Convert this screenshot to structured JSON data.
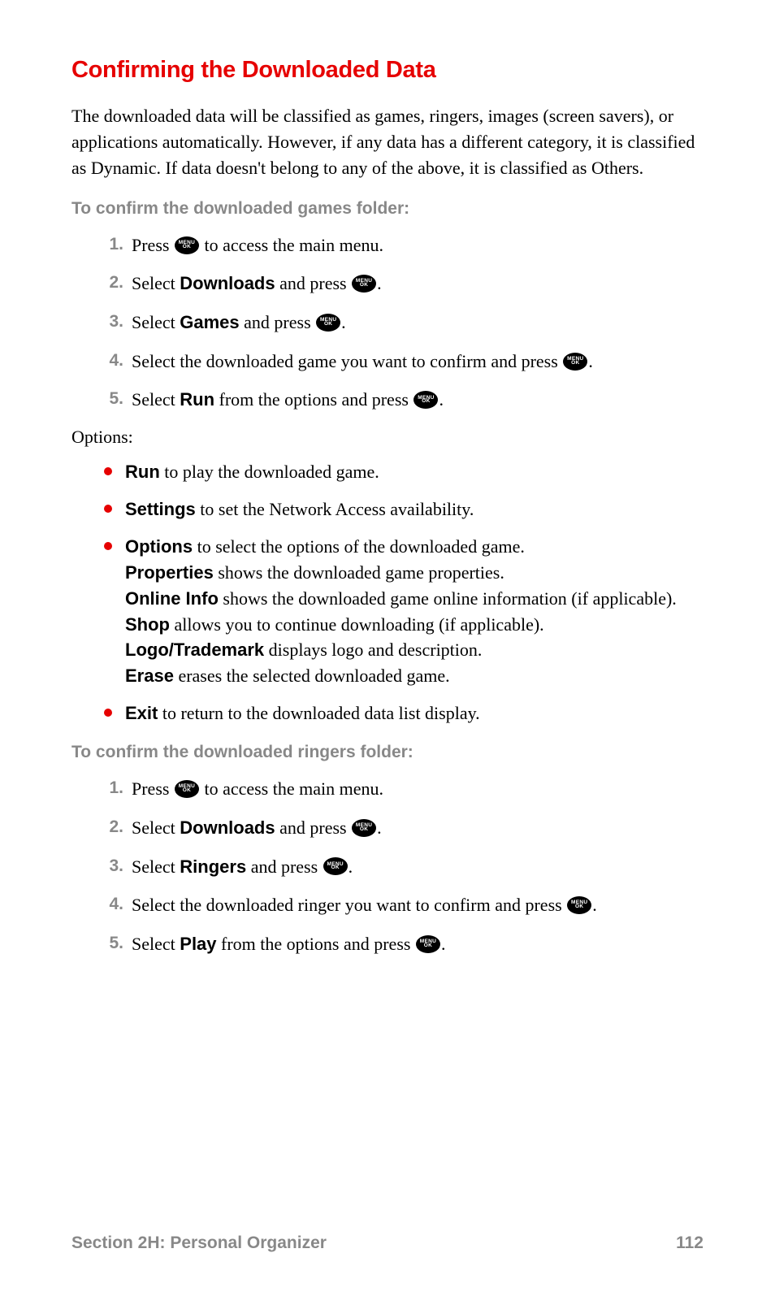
{
  "title": "Confirming the Downloaded Data",
  "intro": "The downloaded data will be classified as games, ringers, images (screen savers), or applications automatically. However, if any data has a different category, it is classified as Dynamic. If data doesn't belong to any of the above, it is classified as Others.",
  "menu_button": {
    "line1": "MENU",
    "line2": "OK"
  },
  "sections": {
    "games": {
      "heading": "To confirm the downloaded games folder:",
      "steps": [
        {
          "num": "1.",
          "pre": "Press ",
          "post": " to access the main menu.",
          "has_button": true
        },
        {
          "num": "2.",
          "pre": "Select ",
          "bold": "Downloads",
          "mid": " and press ",
          "has_button": true,
          "post": "."
        },
        {
          "num": "3.",
          "pre": "Select ",
          "bold": "Games",
          "mid": " and press ",
          "has_button": true,
          "post": "."
        },
        {
          "num": "4.",
          "pre": "Select the downloaded game you want to confirm and press ",
          "has_button": true,
          "post": "."
        },
        {
          "num": "5.",
          "pre": "Select ",
          "bold": "Run",
          "mid": " from the options and press ",
          "has_button": true,
          "post": "."
        }
      ]
    },
    "ringers": {
      "heading": "To confirm the downloaded ringers folder:",
      "steps": [
        {
          "num": "1.",
          "pre": "Press ",
          "post": " to access the main menu.",
          "has_button": true
        },
        {
          "num": "2.",
          "pre": "Select ",
          "bold": "Downloads",
          "mid": " and press ",
          "has_button": true,
          "post": "."
        },
        {
          "num": "3.",
          "pre": "Select ",
          "bold": "Ringers",
          "mid": " and press ",
          "has_button": true,
          "post": "."
        },
        {
          "num": "4.",
          "pre": "Select the downloaded ringer you want to confirm and press ",
          "has_button": true,
          "post": "."
        },
        {
          "num": "5.",
          "pre": "Select ",
          "bold": "Play",
          "mid": " from the options and press ",
          "has_button": true,
          "post": "."
        }
      ]
    }
  },
  "options_label": "Options:",
  "options_bullets": [
    {
      "bold": "Run",
      "text": " to play the downloaded game."
    },
    {
      "bold": "Settings",
      "text": " to set the Network Access availability."
    },
    {
      "bold": "Options",
      "text": " to select the options of the downloaded game.",
      "sub": [
        {
          "bold": "Properties",
          "text": " shows the downloaded game properties."
        },
        {
          "bold": "Online Info",
          "text": " shows the downloaded game online information (if applicable)."
        },
        {
          "bold": "Shop",
          "text": " allows you to continue downloading (if applicable)."
        },
        {
          "bold": "Logo/Trademark",
          "text": " displays logo and description."
        },
        {
          "bold": "Erase",
          "text": " erases the selected downloaded game."
        }
      ]
    },
    {
      "bold": "Exit",
      "text": " to return to the downloaded data list display."
    }
  ],
  "footer": {
    "section": "Section 2H: Personal Organizer",
    "page": "112"
  },
  "colors": {
    "accent_red": "#e60000",
    "grey_text": "#888888",
    "black": "#000000",
    "background": "#ffffff"
  }
}
